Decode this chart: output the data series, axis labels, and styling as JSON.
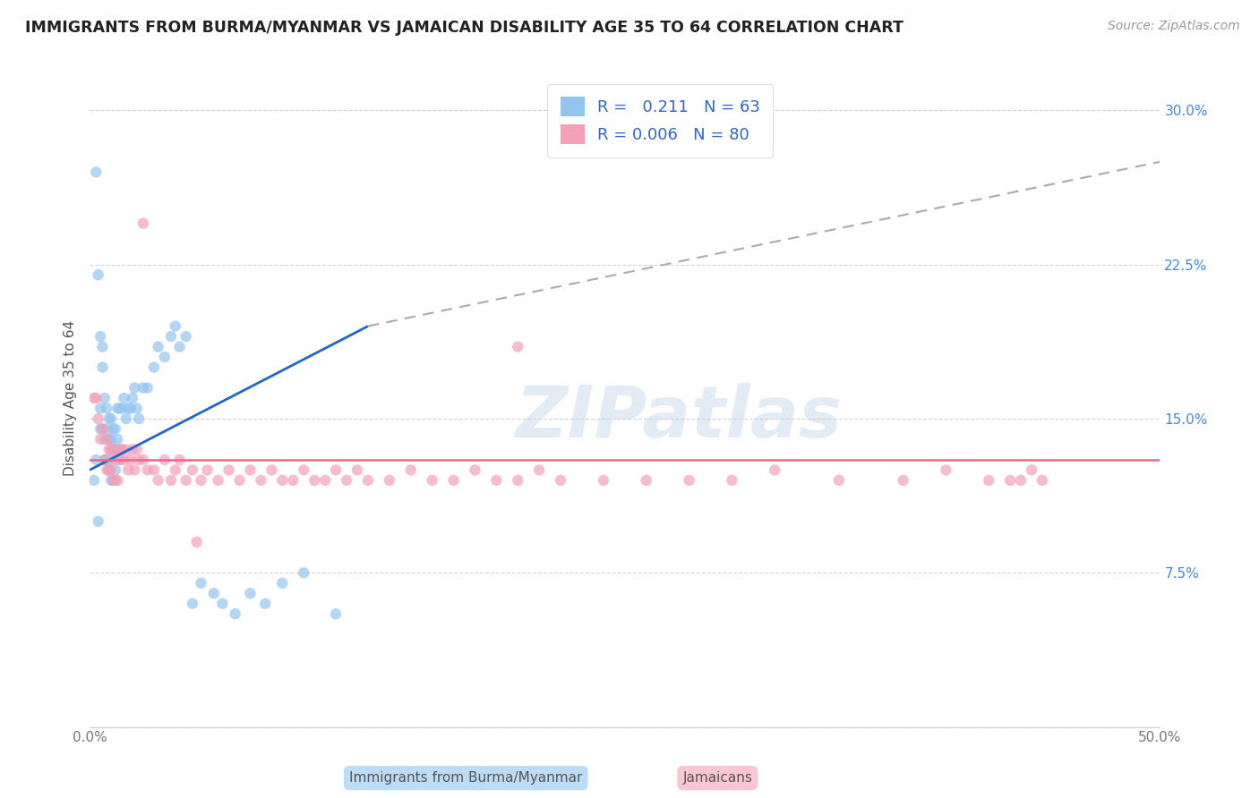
{
  "title": "IMMIGRANTS FROM BURMA/MYANMAR VS JAMAICAN DISABILITY AGE 35 TO 64 CORRELATION CHART",
  "source": "Source: ZipAtlas.com",
  "ylabel": "Disability Age 35 to 64",
  "xlim": [
    0.0,
    0.5
  ],
  "ylim": [
    0.0,
    0.32
  ],
  "xticks": [
    0.0,
    0.1,
    0.2,
    0.3,
    0.4,
    0.5
  ],
  "xticklabels": [
    "0.0%",
    "",
    "",
    "",
    "",
    "50.0%"
  ],
  "yticks": [
    0.0,
    0.075,
    0.15,
    0.225,
    0.3
  ],
  "yticklabels": [
    "",
    "7.5%",
    "15.0%",
    "22.5%",
    "30.0%"
  ],
  "blue_R": 0.211,
  "blue_N": 63,
  "pink_R": 0.006,
  "pink_N": 80,
  "blue_color": "#92C5F0",
  "pink_color": "#F4A0B8",
  "blue_line_color": "#2266CC",
  "pink_line_color": "#EE6688",
  "watermark": "ZIPatlas",
  "legend_label_blue": "Immigrants from Burma/Myanmar",
  "legend_label_pink": "Jamaicans",
  "blue_scatter_x": [
    0.002,
    0.003,
    0.003,
    0.004,
    0.004,
    0.005,
    0.005,
    0.005,
    0.006,
    0.006,
    0.006,
    0.007,
    0.007,
    0.007,
    0.008,
    0.008,
    0.008,
    0.009,
    0.009,
    0.009,
    0.01,
    0.01,
    0.01,
    0.01,
    0.011,
    0.011,
    0.011,
    0.012,
    0.012,
    0.012,
    0.013,
    0.013,
    0.014,
    0.014,
    0.015,
    0.015,
    0.016,
    0.017,
    0.018,
    0.019,
    0.02,
    0.021,
    0.022,
    0.023,
    0.025,
    0.027,
    0.03,
    0.032,
    0.035,
    0.038,
    0.04,
    0.042,
    0.045,
    0.048,
    0.052,
    0.058,
    0.062,
    0.068,
    0.075,
    0.082,
    0.09,
    0.1,
    0.115
  ],
  "blue_scatter_y": [
    0.12,
    0.27,
    0.13,
    0.22,
    0.1,
    0.155,
    0.19,
    0.145,
    0.185,
    0.175,
    0.145,
    0.16,
    0.14,
    0.13,
    0.155,
    0.145,
    0.13,
    0.15,
    0.14,
    0.125,
    0.15,
    0.14,
    0.13,
    0.12,
    0.145,
    0.135,
    0.12,
    0.145,
    0.135,
    0.125,
    0.155,
    0.14,
    0.155,
    0.13,
    0.155,
    0.135,
    0.16,
    0.15,
    0.155,
    0.155,
    0.16,
    0.165,
    0.155,
    0.15,
    0.165,
    0.165,
    0.175,
    0.185,
    0.18,
    0.19,
    0.195,
    0.185,
    0.19,
    0.06,
    0.07,
    0.065,
    0.06,
    0.055,
    0.065,
    0.06,
    0.07,
    0.075,
    0.055
  ],
  "pink_scatter_x": [
    0.002,
    0.003,
    0.004,
    0.005,
    0.006,
    0.007,
    0.008,
    0.008,
    0.009,
    0.009,
    0.01,
    0.01,
    0.011,
    0.011,
    0.012,
    0.012,
    0.013,
    0.013,
    0.014,
    0.015,
    0.016,
    0.017,
    0.018,
    0.019,
    0.02,
    0.021,
    0.022,
    0.023,
    0.025,
    0.027,
    0.03,
    0.032,
    0.035,
    0.038,
    0.04,
    0.042,
    0.045,
    0.048,
    0.052,
    0.055,
    0.06,
    0.065,
    0.07,
    0.075,
    0.08,
    0.085,
    0.09,
    0.095,
    0.1,
    0.105,
    0.11,
    0.115,
    0.12,
    0.125,
    0.13,
    0.14,
    0.15,
    0.16,
    0.17,
    0.18,
    0.19,
    0.2,
    0.21,
    0.22,
    0.24,
    0.26,
    0.28,
    0.3,
    0.32,
    0.35,
    0.38,
    0.4,
    0.42,
    0.43,
    0.435,
    0.44,
    0.445,
    0.025,
    0.05,
    0.2
  ],
  "pink_scatter_y": [
    0.16,
    0.16,
    0.15,
    0.14,
    0.145,
    0.13,
    0.14,
    0.125,
    0.135,
    0.125,
    0.135,
    0.125,
    0.135,
    0.12,
    0.13,
    0.12,
    0.135,
    0.12,
    0.13,
    0.135,
    0.13,
    0.135,
    0.125,
    0.13,
    0.135,
    0.125,
    0.135,
    0.13,
    0.13,
    0.125,
    0.125,
    0.12,
    0.13,
    0.12,
    0.125,
    0.13,
    0.12,
    0.125,
    0.12,
    0.125,
    0.12,
    0.125,
    0.12,
    0.125,
    0.12,
    0.125,
    0.12,
    0.12,
    0.125,
    0.12,
    0.12,
    0.125,
    0.12,
    0.125,
    0.12,
    0.12,
    0.125,
    0.12,
    0.12,
    0.125,
    0.12,
    0.12,
    0.125,
    0.12,
    0.12,
    0.12,
    0.12,
    0.12,
    0.125,
    0.12,
    0.12,
    0.125,
    0.12,
    0.12,
    0.12,
    0.125,
    0.12,
    0.245,
    0.09,
    0.185
  ],
  "blue_line_x_start": 0.0,
  "blue_line_x_solid_end": 0.13,
  "blue_line_x_end": 0.5,
  "blue_line_y_start": 0.125,
  "blue_line_y_solid_end": 0.195,
  "blue_line_y_end": 0.275,
  "pink_line_y": 0.13
}
